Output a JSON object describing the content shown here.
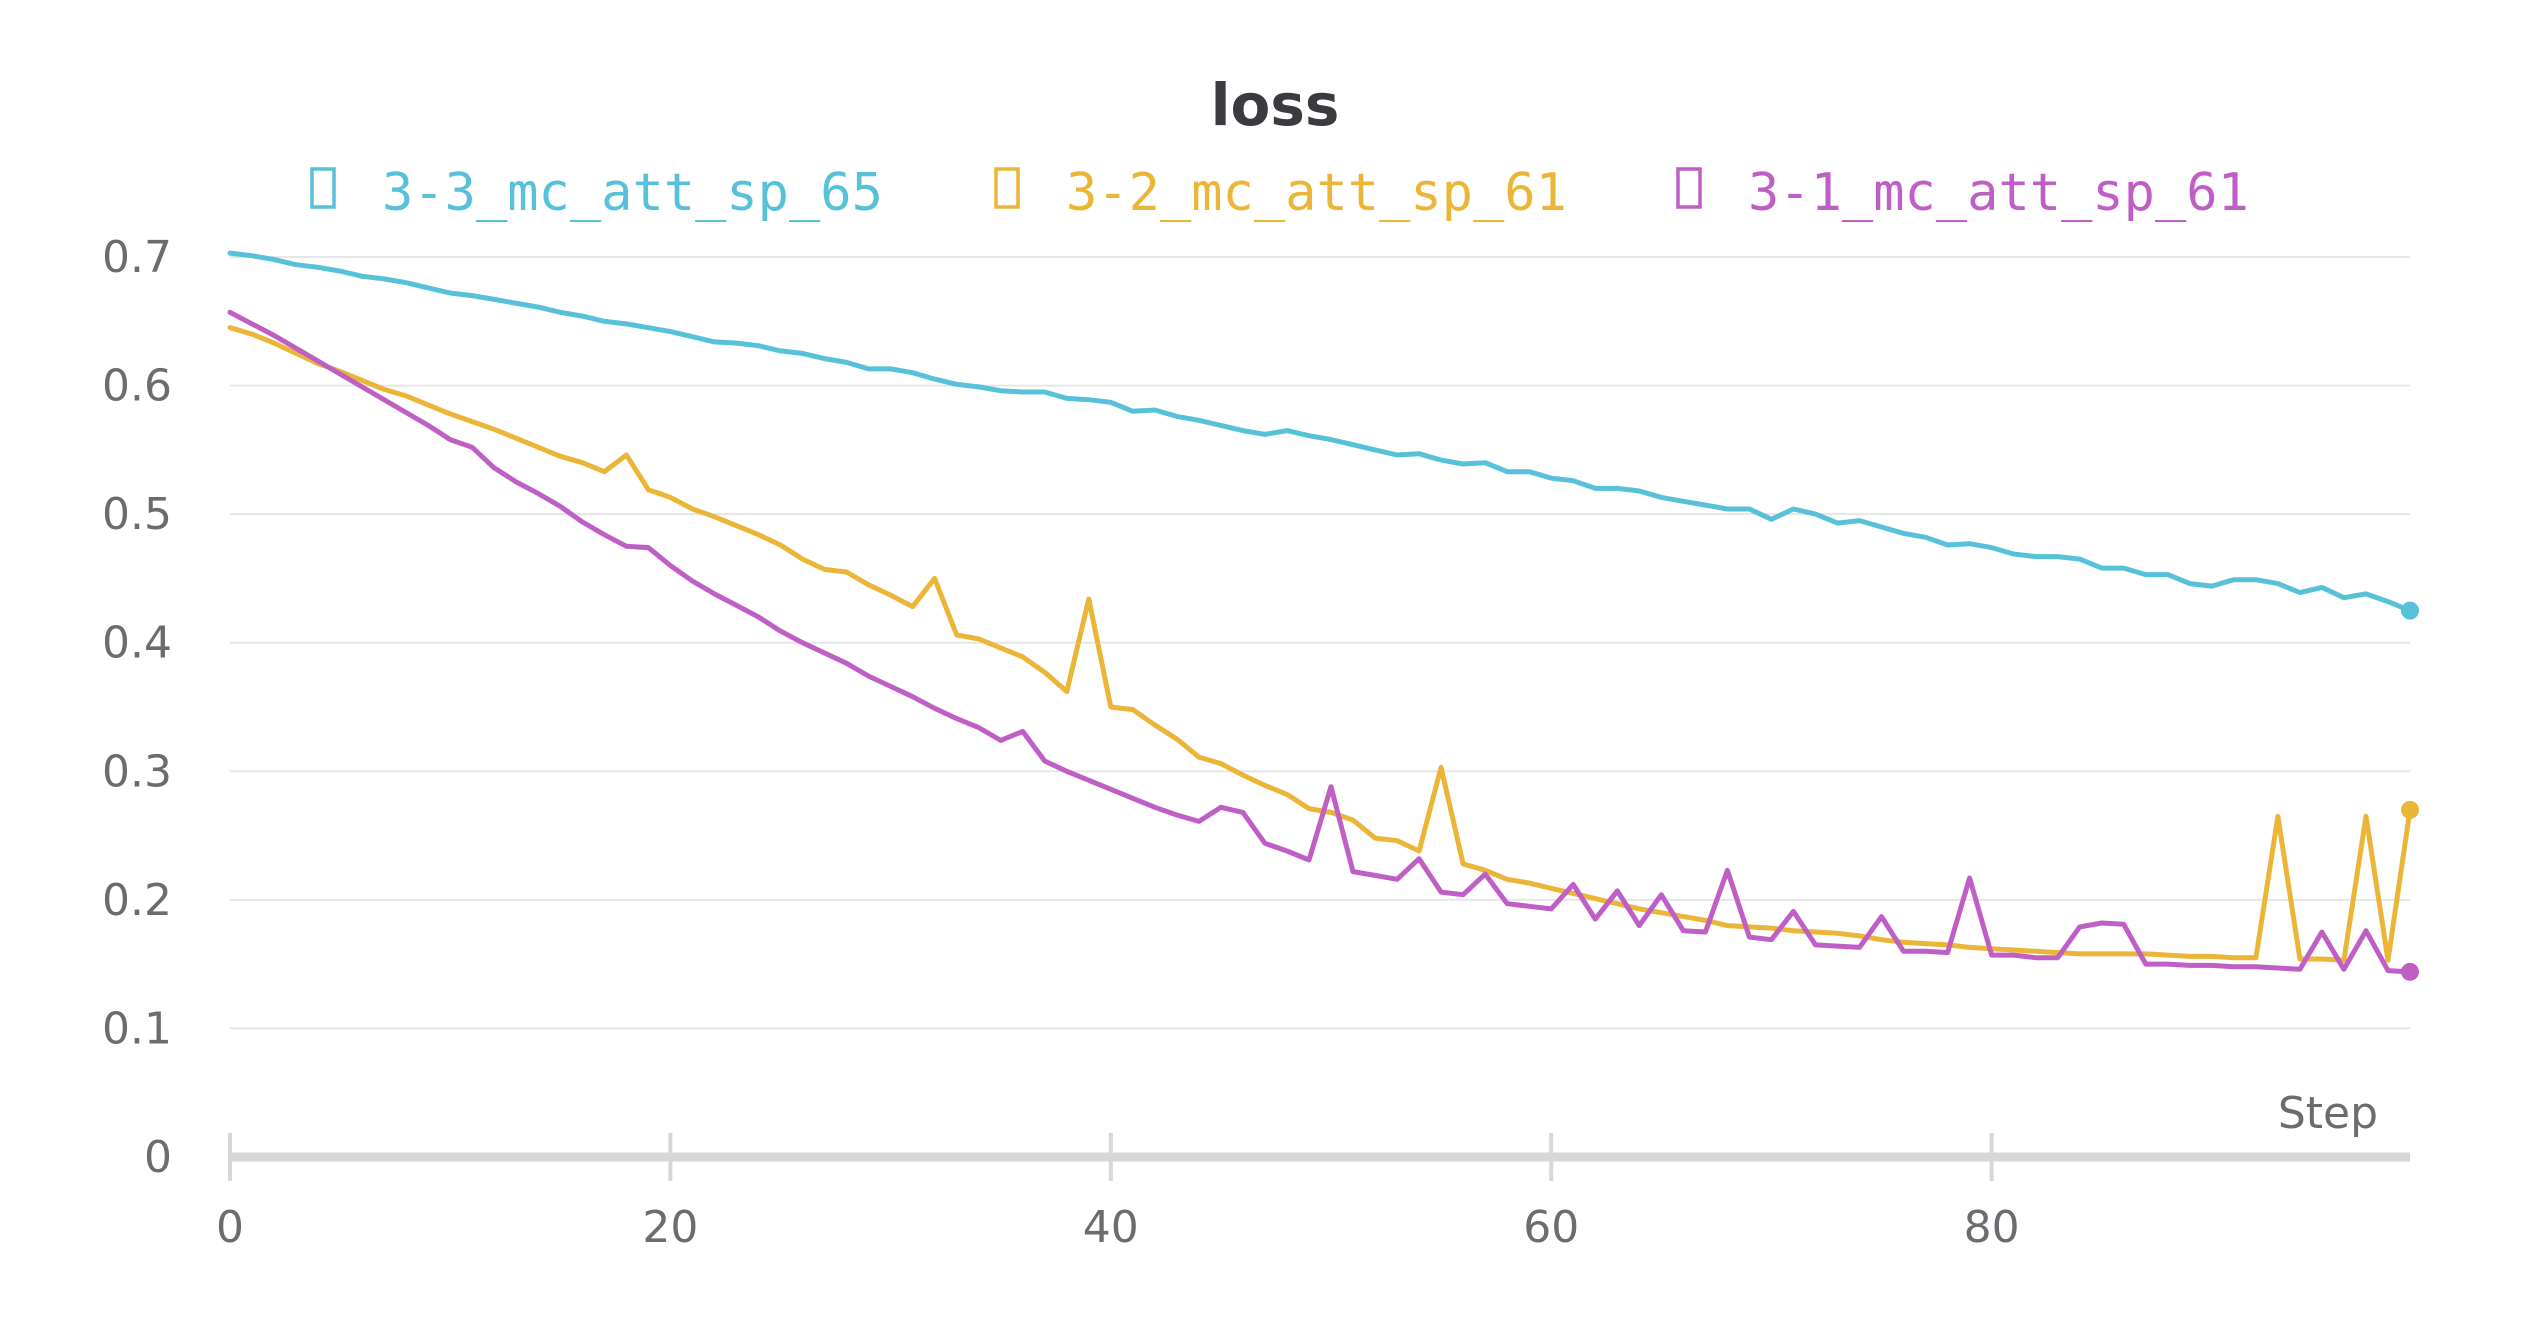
{
  "chart_data": {
    "type": "line",
    "title": "loss",
    "xlabel": "Step",
    "ylabel": "",
    "xlim": [
      0,
      99
    ],
    "ylim": [
      0,
      0.7
    ],
    "x_ticks": [
      0,
      20,
      40,
      60,
      80
    ],
    "y_ticks": [
      0,
      0.1,
      0.2,
      0.3,
      0.4,
      0.5,
      0.6,
      0.7
    ],
    "grid": true,
    "legend_position": "top",
    "series": [
      {
        "name": "3-3_mc_att_sp_65",
        "color": "#56c1d8",
        "x": [
          0,
          1,
          2,
          3,
          4,
          5,
          6,
          7,
          8,
          9,
          10,
          11,
          12,
          13,
          14,
          15,
          16,
          17,
          18,
          19,
          20,
          21,
          22,
          23,
          24,
          25,
          26,
          27,
          28,
          29,
          30,
          31,
          32,
          33,
          34,
          35,
          36,
          37,
          38,
          39,
          40,
          41,
          42,
          43,
          44,
          45,
          46,
          47,
          48,
          49,
          50,
          51,
          52,
          53,
          54,
          55,
          56,
          57,
          58,
          59,
          60,
          61,
          62,
          63,
          64,
          65,
          66,
          67,
          68,
          69,
          70,
          71,
          72,
          73,
          74,
          75,
          76,
          77,
          78,
          79,
          80,
          81,
          82,
          83,
          84,
          85,
          86,
          87,
          88,
          89,
          90,
          91,
          92,
          93,
          94,
          95,
          96,
          97,
          98,
          99
        ],
        "y": [
          0.703,
          0.701,
          0.698,
          0.694,
          0.692,
          0.689,
          0.685,
          0.683,
          0.68,
          0.676,
          0.672,
          0.67,
          0.667,
          0.664,
          0.661,
          0.657,
          0.654,
          0.65,
          0.648,
          0.645,
          0.642,
          0.638,
          0.634,
          0.633,
          0.631,
          0.627,
          0.625,
          0.621,
          0.618,
          0.613,
          0.613,
          0.61,
          0.605,
          0.601,
          0.599,
          0.596,
          0.595,
          0.595,
          0.59,
          0.589,
          0.587,
          0.58,
          0.581,
          0.576,
          0.573,
          0.569,
          0.565,
          0.562,
          0.565,
          0.561,
          0.558,
          0.554,
          0.55,
          0.546,
          0.547,
          0.542,
          0.539,
          0.54,
          0.533,
          0.533,
          0.528,
          0.526,
          0.52,
          0.52,
          0.518,
          0.513,
          0.51,
          0.507,
          0.504,
          0.504,
          0.496,
          0.504,
          0.5,
          0.493,
          0.495,
          0.49,
          0.485,
          0.482,
          0.476,
          0.477,
          0.474,
          0.469,
          0.467,
          0.467,
          0.465,
          0.458,
          0.458,
          0.453,
          0.453,
          0.446,
          0.444,
          0.449,
          0.449,
          0.446,
          0.439,
          0.443,
          0.435,
          0.438,
          0.432,
          0.425
        ]
      },
      {
        "name": "3-2_mc_att_sp_61",
        "color": "#ebb537",
        "x": [
          0,
          1,
          2,
          3,
          4,
          5,
          6,
          7,
          8,
          9,
          10,
          11,
          12,
          13,
          14,
          15,
          16,
          17,
          18,
          19,
          20,
          21,
          22,
          23,
          24,
          25,
          26,
          27,
          28,
          29,
          30,
          31,
          32,
          33,
          34,
          35,
          36,
          37,
          38,
          39,
          40,
          41,
          42,
          43,
          44,
          45,
          46,
          47,
          48,
          49,
          50,
          51,
          52,
          53,
          54,
          55,
          56,
          57,
          58,
          59,
          60,
          61,
          62,
          63,
          64,
          65,
          66,
          67,
          68,
          69,
          70,
          71,
          72,
          73,
          74,
          75,
          76,
          77,
          78,
          79,
          80,
          81,
          82,
          83,
          84,
          85,
          86,
          87,
          88,
          89,
          90,
          91,
          92,
          93,
          94,
          95,
          96,
          97,
          98,
          99
        ],
        "y": [
          0.645,
          0.64,
          0.633,
          0.625,
          0.617,
          0.611,
          0.604,
          0.597,
          0.592,
          0.585,
          0.578,
          0.572,
          0.566,
          0.559,
          0.552,
          0.545,
          0.54,
          0.533,
          0.546,
          0.519,
          0.513,
          0.504,
          0.498,
          0.491,
          0.484,
          0.476,
          0.465,
          0.457,
          0.455,
          0.445,
          0.437,
          0.428,
          0.45,
          0.406,
          0.403,
          0.396,
          0.389,
          0.377,
          0.362,
          0.434,
          0.35,
          0.348,
          0.336,
          0.325,
          0.311,
          0.306,
          0.297,
          0.289,
          0.282,
          0.271,
          0.268,
          0.262,
          0.248,
          0.246,
          0.238,
          0.303,
          0.228,
          0.223,
          0.216,
          0.213,
          0.209,
          0.205,
          0.201,
          0.197,
          0.193,
          0.19,
          0.187,
          0.184,
          0.18,
          0.179,
          0.178,
          0.176,
          0.175,
          0.174,
          0.172,
          0.169,
          0.167,
          0.166,
          0.165,
          0.163,
          0.162,
          0.161,
          0.16,
          0.159,
          0.158,
          0.158,
          0.158,
          0.158,
          0.157,
          0.156,
          0.156,
          0.155,
          0.155,
          0.265,
          0.154,
          0.154,
          0.153,
          0.265,
          0.153,
          0.27
        ]
      },
      {
        "name": "3-1_mc_att_sp_61",
        "color": "#bf5fc6",
        "x": [
          0,
          1,
          2,
          3,
          4,
          5,
          6,
          7,
          8,
          9,
          10,
          11,
          12,
          13,
          14,
          15,
          16,
          17,
          18,
          19,
          20,
          21,
          22,
          23,
          24,
          25,
          26,
          27,
          28,
          29,
          30,
          31,
          32,
          33,
          34,
          35,
          36,
          37,
          38,
          39,
          40,
          41,
          42,
          43,
          44,
          45,
          46,
          47,
          48,
          49,
          50,
          51,
          52,
          53,
          54,
          55,
          56,
          57,
          58,
          59,
          60,
          61,
          62,
          63,
          64,
          65,
          66,
          67,
          68,
          69,
          70,
          71,
          72,
          73,
          74,
          75,
          76,
          77,
          78,
          79,
          80,
          81,
          82,
          83,
          84,
          85,
          86,
          87,
          88,
          89,
          90,
          91,
          92,
          93,
          94,
          95,
          96,
          97,
          98,
          99
        ],
        "y": [
          0.657,
          0.648,
          0.639,
          0.629,
          0.619,
          0.609,
          0.599,
          0.589,
          0.579,
          0.569,
          0.558,
          0.552,
          0.536,
          0.525,
          0.516,
          0.506,
          0.494,
          0.484,
          0.475,
          0.474,
          0.46,
          0.448,
          0.438,
          0.429,
          0.42,
          0.409,
          0.4,
          0.392,
          0.384,
          0.374,
          0.366,
          0.358,
          0.349,
          0.341,
          0.334,
          0.324,
          0.331,
          0.308,
          0.3,
          0.293,
          0.286,
          0.279,
          0.272,
          0.266,
          0.261,
          0.272,
          0.268,
          0.244,
          0.238,
          0.231,
          0.288,
          0.222,
          0.219,
          0.216,
          0.232,
          0.206,
          0.204,
          0.22,
          0.197,
          0.195,
          0.193,
          0.212,
          0.185,
          0.207,
          0.18,
          0.204,
          0.176,
          0.175,
          0.223,
          0.171,
          0.169,
          0.191,
          0.165,
          0.164,
          0.163,
          0.187,
          0.16,
          0.16,
          0.159,
          0.217,
          0.157,
          0.157,
          0.155,
          0.155,
          0.179,
          0.182,
          0.181,
          0.15,
          0.15,
          0.149,
          0.149,
          0.148,
          0.148,
          0.147,
          0.146,
          0.175,
          0.146,
          0.176,
          0.145,
          0.144
        ]
      }
    ]
  }
}
